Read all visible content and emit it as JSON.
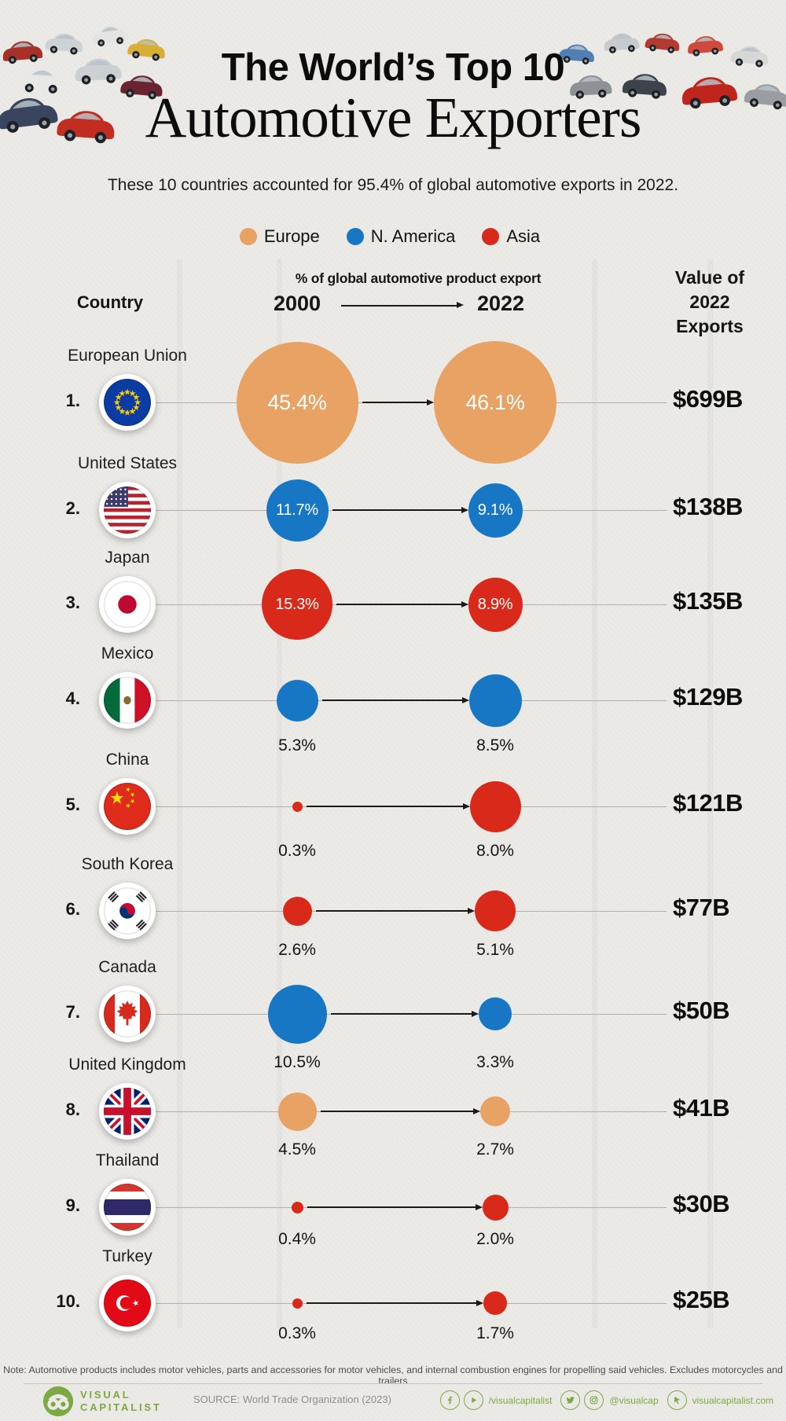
{
  "header": {
    "title_line1": "The World’s Top 10",
    "title_line2": "Automotive Exporters",
    "subtitle": "These 10 countries accounted for 95.4% of global automotive exports in 2022."
  },
  "legend": [
    {
      "label": "Europe",
      "color": "#E8A263"
    },
    {
      "label": "N. America",
      "color": "#1877C5"
    },
    {
      "label": "Asia",
      "color": "#D8291A"
    }
  ],
  "columns": {
    "country": "Country",
    "pct_header": "% of global automotive product export",
    "year_start": "2000",
    "year_end": "2022",
    "value_header": [
      "Value of",
      "2022",
      "Exports"
    ]
  },
  "chart_data": {
    "type": "bubble-slope",
    "years": [
      2000,
      2022
    ],
    "bubble_area_proportional_to": "percent of global automotive product export",
    "rows": [
      {
        "rank": "1.",
        "country": "European Union",
        "flag": "eu",
        "region": "Europe",
        "pct_2000": 45.4,
        "pct_2022": 46.1,
        "value": "$699B",
        "labels_inside": true
      },
      {
        "rank": "2.",
        "country": "United States",
        "flag": "us",
        "region": "N. America",
        "pct_2000": 11.7,
        "pct_2022": 9.1,
        "value": "$138B",
        "labels_inside": true
      },
      {
        "rank": "3.",
        "country": "Japan",
        "flag": "jp",
        "region": "Asia",
        "pct_2000": 15.3,
        "pct_2022": 8.9,
        "value": "$135B",
        "labels_inside": true
      },
      {
        "rank": "4.",
        "country": "Mexico",
        "flag": "mx",
        "region": "N. America",
        "pct_2000": 5.3,
        "pct_2022": 8.5,
        "value": "$129B",
        "labels_inside": false
      },
      {
        "rank": "5.",
        "country": "China",
        "flag": "cn",
        "region": "Asia",
        "pct_2000": 0.3,
        "pct_2022": 8.0,
        "value": "$121B",
        "labels_inside": false
      },
      {
        "rank": "6.",
        "country": "South Korea",
        "flag": "kr",
        "region": "Asia",
        "pct_2000": 2.6,
        "pct_2022": 5.1,
        "value": "$77B",
        "labels_inside": false
      },
      {
        "rank": "7.",
        "country": "Canada",
        "flag": "ca",
        "region": "N. America",
        "pct_2000": 10.5,
        "pct_2022": 3.3,
        "value": "$50B",
        "labels_inside": false
      },
      {
        "rank": "8.",
        "country": "United Kingdom",
        "flag": "uk",
        "region": "Europe",
        "pct_2000": 4.5,
        "pct_2022": 2.7,
        "value": "$41B",
        "labels_inside": false
      },
      {
        "rank": "9.",
        "country": "Thailand",
        "flag": "th",
        "region": "Asia",
        "pct_2000": 0.4,
        "pct_2022": 2.0,
        "value": "$30B",
        "labels_inside": false
      },
      {
        "rank": "10.",
        "country": "Turkey",
        "flag": "tr",
        "region": "Asia",
        "pct_2000": 0.3,
        "pct_2022": 1.7,
        "value": "$25B",
        "labels_inside": false
      }
    ]
  },
  "footer": {
    "note": "Note: Automotive products includes motor vehicles, parts and accessories for motor vehicles, and internal combustion engines for propelling said vehicles. Excludes motorcycles and trailers",
    "source": "SOURCE: World Trade Organization (2023)",
    "brand_line1": "VISUAL",
    "brand_line2": "CAPITALIST",
    "social_handle_1": "/visualcapitalist",
    "social_handle_2": "@visualcap",
    "social_website": "visualcapitalist.com"
  }
}
